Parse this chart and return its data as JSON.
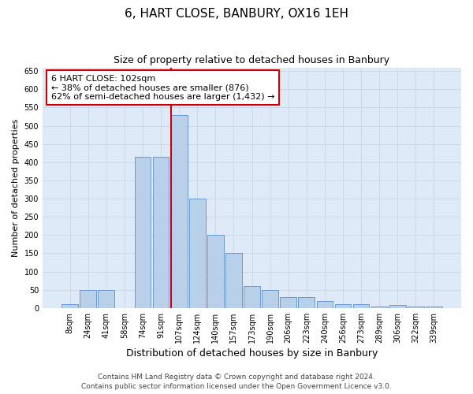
{
  "title1": "6, HART CLOSE, BANBURY, OX16 1EH",
  "title2": "Size of property relative to detached houses in Banbury",
  "xlabel": "Distribution of detached houses by size in Banbury",
  "ylabel": "Number of detached properties",
  "categories": [
    "8sqm",
    "24sqm",
    "41sqm",
    "58sqm",
    "74sqm",
    "91sqm",
    "107sqm",
    "124sqm",
    "140sqm",
    "157sqm",
    "173sqm",
    "190sqm",
    "206sqm",
    "223sqm",
    "240sqm",
    "256sqm",
    "273sqm",
    "289sqm",
    "306sqm",
    "322sqm",
    "339sqm"
  ],
  "values": [
    10,
    50,
    50,
    0,
    415,
    415,
    530,
    300,
    200,
    150,
    60,
    50,
    30,
    30,
    20,
    10,
    10,
    5,
    8,
    5,
    5
  ],
  "bar_color": "#b8d0ea",
  "bar_edge_color": "#5b8fc9",
  "vline_color": "#cc0000",
  "annotation_text": "6 HART CLOSE: 102sqm\n← 38% of detached houses are smaller (876)\n62% of semi-detached houses are larger (1,432) →",
  "annotation_box_color": "#ffffff",
  "annotation_box_edge": "#cc0000",
  "ylim": [
    0,
    660
  ],
  "yticks": [
    0,
    50,
    100,
    150,
    200,
    250,
    300,
    350,
    400,
    450,
    500,
    550,
    600,
    650
  ],
  "grid_color": "#c8d8e8",
  "background_color": "#deeaf7",
  "footer1": "Contains HM Land Registry data © Crown copyright and database right 2024.",
  "footer2": "Contains public sector information licensed under the Open Government Licence v3.0.",
  "title_fontsize": 11,
  "subtitle_fontsize": 9,
  "xlabel_fontsize": 9,
  "ylabel_fontsize": 8,
  "tick_fontsize": 7,
  "footer_fontsize": 6.5,
  "ann_fontsize": 8
}
